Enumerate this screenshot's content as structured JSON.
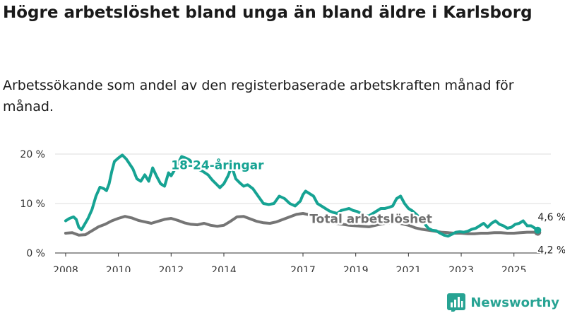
{
  "header": {
    "title": "Högre arbetslöshet bland unga än bland äldre i Karlsborg",
    "subtitle": "Arbetssökande som andel av den registerbaserade arbetskraften månad för månad."
  },
  "brand": {
    "name": "Newsworthy"
  },
  "chart_data": {
    "type": "line",
    "title": "Högre arbetslöshet bland unga än bland äldre i Karlsborg",
    "subtitle": "Arbetssökande som andel av den registerbaserade arbetskraften månad för månad.",
    "xlabel": "",
    "ylabel": "",
    "xlim": [
      2007.6,
      2026.4
    ],
    "ylim": [
      0,
      20
    ],
    "x_ticks": [
      2008,
      2010,
      2012,
      2014,
      2017,
      2019,
      2021,
      2023,
      2025
    ],
    "x_tick_labels": [
      "2008",
      "2010",
      "2012",
      "2014",
      "2017",
      "2019",
      "2021",
      "2023",
      "2025"
    ],
    "y_ticks": [
      0,
      10,
      20
    ],
    "y_tick_labels": [
      "0 %",
      "10 %",
      "20 %"
    ],
    "grid": true,
    "series": [
      {
        "name": "18-24-åringar",
        "color": "#16a393",
        "width": 4,
        "x": [
          2008.0,
          2008.15,
          2008.3,
          2008.4,
          2008.5,
          2008.6,
          2008.7,
          2008.85,
          2009.0,
          2009.15,
          2009.3,
          2009.45,
          2009.55,
          2009.65,
          2009.75,
          2009.85,
          2010.0,
          2010.15,
          2010.3,
          2010.4,
          2010.55,
          2010.7,
          2010.85,
          2011.0,
          2011.15,
          2011.3,
          2011.45,
          2011.6,
          2011.75,
          2011.9,
          2012.0,
          2012.1,
          2012.25,
          2012.4,
          2012.55,
          2012.7,
          2012.85,
          2013.0,
          2013.2,
          2013.4,
          2013.55,
          2013.7,
          2013.85,
          2014.0,
          2014.15,
          2014.3,
          2014.45,
          2014.6,
          2014.75,
          2014.9,
          2015.1,
          2015.3,
          2015.5,
          2015.7,
          2015.9,
          2016.1,
          2016.3,
          2016.5,
          2016.7,
          2016.9,
          2017.0,
          2017.1,
          2017.25,
          2017.4,
          2017.55,
          2017.7,
          2017.85,
          2018.0,
          2018.15,
          2018.3,
          2018.45,
          2018.6,
          2018.75,
          2018.9,
          2019.05,
          2019.2,
          2019.35,
          2019.5,
          2019.65,
          2019.8,
          2019.95,
          2020.1,
          2020.25,
          2020.4,
          2020.55,
          2020.7,
          2020.85,
          2021.0,
          2021.15,
          2021.3,
          2021.45,
          2021.6,
          2021.75,
          2021.9,
          2022.05,
          2022.2,
          2022.35,
          2022.5,
          2022.65,
          2022.8,
          2022.95,
          2023.1,
          2023.25,
          2023.4,
          2023.55,
          2023.7,
          2023.85,
          2024.0,
          2024.15,
          2024.3,
          2024.45,
          2024.6,
          2024.75,
          2024.9,
          2025.05,
          2025.2,
          2025.35,
          2025.5,
          2025.65,
          2025.8,
          2025.9
        ],
        "y": [
          6.5,
          7.0,
          7.3,
          6.8,
          5.2,
          4.7,
          5.6,
          7.0,
          8.8,
          11.5,
          13.3,
          13.0,
          12.6,
          14.0,
          16.5,
          18.5,
          19.2,
          19.8,
          19.0,
          18.2,
          17.0,
          15.0,
          14.5,
          15.8,
          14.5,
          17.2,
          15.5,
          14.0,
          13.5,
          16.2,
          15.6,
          16.5,
          18.0,
          19.5,
          19.2,
          18.8,
          17.8,
          17.0,
          16.5,
          15.8,
          14.8,
          14.0,
          13.2,
          14.0,
          15.5,
          17.5,
          15.0,
          14.2,
          13.5,
          13.8,
          13.0,
          11.5,
          10.0,
          9.8,
          10.0,
          11.5,
          11.0,
          10.0,
          9.5,
          10.5,
          11.8,
          12.5,
          12.0,
          11.5,
          10.0,
          9.5,
          9.0,
          8.5,
          8.2,
          8.0,
          8.6,
          8.8,
          9.0,
          8.6,
          8.4,
          8.0,
          7.5,
          7.5,
          8.0,
          8.5,
          9.0,
          9.0,
          9.2,
          9.5,
          11.0,
          11.5,
          10.0,
          9.0,
          8.5,
          7.8,
          7.0,
          6.0,
          5.0,
          4.6,
          4.5,
          4.0,
          3.6,
          3.4,
          3.8,
          4.2,
          4.3,
          4.2,
          4.4,
          4.8,
          5.0,
          5.5,
          6.0,
          5.2,
          6.0,
          6.5,
          5.8,
          5.5,
          5.0,
          5.2,
          5.8,
          6.0,
          6.5,
          5.5,
          5.5,
          5.0,
          4.6
        ]
      },
      {
        "name": "Total arbetslöshet",
        "color": "#757575",
        "width": 4,
        "x": [
          2008.0,
          2008.25,
          2008.5,
          2008.75,
          2009.0,
          2009.25,
          2009.5,
          2009.75,
          2010.0,
          2010.25,
          2010.5,
          2010.75,
          2011.0,
          2011.25,
          2011.5,
          2011.75,
          2012.0,
          2012.25,
          2012.5,
          2012.75,
          2013.0,
          2013.25,
          2013.5,
          2013.75,
          2014.0,
          2014.25,
          2014.5,
          2014.75,
          2015.0,
          2015.25,
          2015.5,
          2015.75,
          2016.0,
          2016.25,
          2016.5,
          2016.75,
          2017.0,
          2017.25,
          2017.5,
          2017.75,
          2018.0,
          2018.25,
          2018.5,
          2018.75,
          2019.0,
          2019.25,
          2019.5,
          2019.75,
          2020.0,
          2020.25,
          2020.5,
          2020.75,
          2021.0,
          2021.25,
          2021.5,
          2021.75,
          2022.0,
          2022.25,
          2022.5,
          2022.75,
          2023.0,
          2023.25,
          2023.5,
          2023.75,
          2024.0,
          2024.25,
          2024.5,
          2024.75,
          2025.0,
          2025.25,
          2025.5,
          2025.75,
          2025.9
        ],
        "y": [
          4.0,
          4.1,
          3.6,
          3.7,
          4.5,
          5.3,
          5.8,
          6.5,
          7.0,
          7.4,
          7.1,
          6.6,
          6.3,
          6.0,
          6.4,
          6.8,
          7.0,
          6.6,
          6.1,
          5.8,
          5.7,
          6.0,
          5.6,
          5.4,
          5.6,
          6.4,
          7.3,
          7.4,
          6.9,
          6.4,
          6.1,
          6.0,
          6.3,
          6.8,
          7.3,
          7.8,
          8.0,
          7.7,
          7.1,
          6.6,
          6.3,
          6.0,
          5.8,
          5.6,
          5.5,
          5.4,
          5.3,
          5.6,
          5.9,
          6.1,
          6.2,
          5.9,
          5.6,
          5.1,
          4.8,
          4.6,
          4.4,
          4.2,
          4.1,
          4.0,
          4.0,
          3.9,
          3.9,
          4.0,
          4.0,
          4.1,
          4.1,
          4.0,
          4.0,
          4.1,
          4.2,
          4.2,
          4.2
        ]
      }
    ],
    "annotations": [
      {
        "text": "18-24-åringar",
        "x": 2012.0,
        "y": 16.9,
        "color": "#16a393",
        "anchor": "start"
      },
      {
        "text": "Total arbetslöshet",
        "x": 2017.25,
        "y": 6.1,
        "color": "#707070",
        "anchor": "start"
      }
    ],
    "end_labels": [
      {
        "text": "4,6 %",
        "x": 2025.9,
        "y": 4.6
      },
      {
        "text": "4,2 %",
        "x": 2025.9,
        "y": 4.2
      }
    ]
  }
}
